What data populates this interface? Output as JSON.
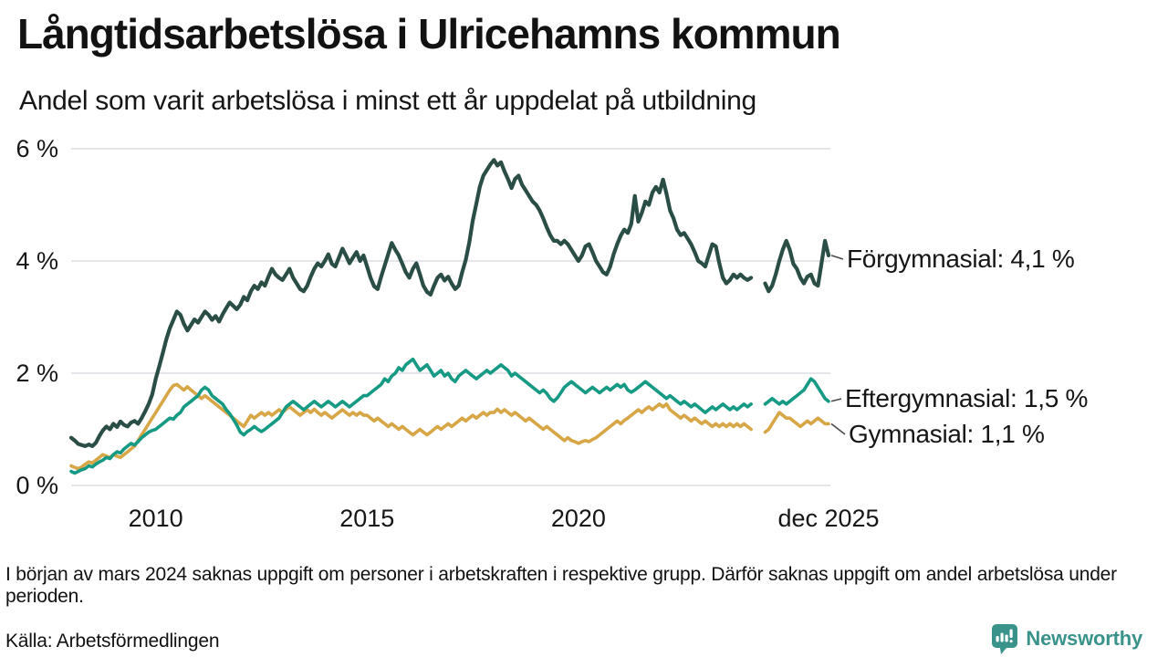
{
  "header": {
    "title": "Långtidsarbetslösa i Ulricehamns kommun",
    "subtitle": "Andel som varit arbetslösa i minst ett år uppdelat på utbildning"
  },
  "chart_data": {
    "type": "line",
    "title": "Långtidsarbetslösa i Ulricehamns kommun",
    "subtitle": "Andel som varit arbetslösa i minst ett år uppdelat på utbildning",
    "unit": "%",
    "x_unit": "month",
    "x_start": "2008-01",
    "x_end": "2025-12",
    "grid": "horizontal",
    "ylim": [
      0,
      6.3
    ],
    "y_ticks": [
      {
        "label": "0 %",
        "value": 0
      },
      {
        "label": "2 %",
        "value": 2
      },
      {
        "label": "4 %",
        "value": 4
      },
      {
        "label": "6 %",
        "value": 6
      }
    ],
    "x_ticks": [
      {
        "label": "2010",
        "month_index": 24
      },
      {
        "label": "2015",
        "month_index": 84
      },
      {
        "label": "2020",
        "month_index": 144
      },
      {
        "label": "dec 2025",
        "month_index": 215
      }
    ],
    "series": [
      {
        "name": "Förgymnasial",
        "end_label": "Förgymnasial: 4,1 %",
        "end_value": 4.1,
        "color": "#2a4e46",
        "values": [
          0.85,
          0.8,
          0.74,
          0.72,
          0.7,
          0.73,
          0.7,
          0.76,
          0.88,
          0.98,
          1.05,
          1.0,
          1.1,
          1.04,
          1.14,
          1.08,
          1.05,
          1.12,
          1.15,
          1.1,
          1.2,
          1.32,
          1.45,
          1.62,
          1.9,
          2.12,
          2.36,
          2.6,
          2.8,
          2.95,
          3.1,
          3.04,
          2.88,
          2.76,
          2.86,
          2.96,
          2.9,
          3.0,
          3.1,
          3.04,
          2.95,
          3.02,
          2.92,
          3.05,
          3.16,
          3.26,
          3.2,
          3.14,
          3.22,
          3.36,
          3.3,
          3.46,
          3.56,
          3.5,
          3.62,
          3.56,
          3.72,
          3.86,
          3.76,
          3.7,
          3.66,
          3.76,
          3.86,
          3.7,
          3.6,
          3.5,
          3.46,
          3.56,
          3.72,
          3.86,
          3.96,
          3.9,
          4.0,
          4.12,
          3.95,
          3.9,
          4.06,
          4.22,
          4.1,
          3.96,
          4.06,
          4.16,
          4.0,
          4.1,
          3.9,
          3.7,
          3.55,
          3.5,
          3.72,
          3.92,
          4.12,
          4.32,
          4.2,
          4.1,
          3.95,
          3.8,
          3.7,
          3.86,
          3.96,
          3.76,
          3.56,
          3.45,
          3.4,
          3.56,
          3.7,
          3.76,
          3.65,
          3.72,
          3.6,
          3.5,
          3.56,
          3.8,
          4.02,
          4.32,
          4.72,
          5.02,
          5.32,
          5.52,
          5.62,
          5.72,
          5.8,
          5.7,
          5.76,
          5.6,
          5.46,
          5.3,
          5.46,
          5.52,
          5.36,
          5.26,
          5.16,
          5.06,
          5.0,
          4.9,
          4.76,
          4.6,
          4.46,
          4.36,
          4.36,
          4.3,
          4.36,
          4.3,
          4.2,
          4.1,
          4.0,
          4.1,
          4.26,
          4.3,
          4.16,
          4.0,
          3.9,
          3.8,
          3.76,
          3.9,
          4.12,
          4.3,
          4.45,
          4.56,
          4.5,
          4.66,
          5.16,
          4.7,
          4.86,
          5.06,
          5.0,
          5.22,
          5.32,
          5.22,
          5.45,
          5.2,
          4.9,
          4.76,
          4.56,
          4.46,
          4.5,
          4.4,
          4.3,
          4.16,
          4.0,
          3.96,
          3.9,
          4.1,
          4.3,
          4.26,
          3.96,
          3.7,
          3.6,
          3.66,
          3.76,
          3.7,
          3.76,
          3.7,
          3.66,
          3.7,
          null,
          null,
          null,
          3.6,
          3.46,
          3.56,
          3.76,
          4.0,
          4.2,
          4.36,
          4.2,
          3.95,
          3.86,
          3.7,
          3.6,
          3.72,
          3.76,
          3.6,
          3.56,
          3.96,
          4.36,
          4.1
        ]
      },
      {
        "name": "Eftergymnasial",
        "end_label": "Eftergymnasial: 1,5 %",
        "end_value": 1.5,
        "color": "#169a84",
        "values": [
          0.25,
          0.22,
          0.25,
          0.28,
          0.3,
          0.35,
          0.33,
          0.38,
          0.42,
          0.45,
          0.5,
          0.48,
          0.55,
          0.6,
          0.58,
          0.65,
          0.7,
          0.75,
          0.72,
          0.78,
          0.85,
          0.9,
          0.95,
          0.98,
          1.0,
          1.05,
          1.1,
          1.15,
          1.2,
          1.18,
          1.25,
          1.3,
          1.4,
          1.45,
          1.5,
          1.55,
          1.6,
          1.7,
          1.75,
          1.7,
          1.6,
          1.55,
          1.5,
          1.45,
          1.35,
          1.28,
          1.18,
          1.08,
          0.95,
          0.9,
          0.96,
          1.0,
          1.05,
          1.0,
          0.96,
          1.0,
          1.05,
          1.1,
          1.15,
          1.2,
          1.3,
          1.4,
          1.45,
          1.5,
          1.45,
          1.4,
          1.35,
          1.4,
          1.45,
          1.5,
          1.45,
          1.4,
          1.45,
          1.5,
          1.45,
          1.4,
          1.45,
          1.5,
          1.45,
          1.4,
          1.45,
          1.5,
          1.55,
          1.6,
          1.6,
          1.65,
          1.7,
          1.75,
          1.8,
          1.9,
          1.85,
          1.95,
          2.0,
          2.1,
          2.05,
          2.15,
          2.2,
          2.25,
          2.15,
          2.05,
          2.1,
          2.15,
          2.05,
          1.95,
          2.0,
          2.05,
          1.95,
          2.0,
          1.9,
          1.85,
          1.95,
          2.0,
          2.05,
          2.0,
          1.95,
          1.9,
          1.95,
          2.0,
          2.05,
          2.0,
          2.05,
          2.1,
          2.15,
          2.1,
          2.05,
          1.95,
          2.0,
          1.95,
          1.9,
          1.85,
          1.8,
          1.75,
          1.7,
          1.65,
          1.7,
          1.64,
          1.55,
          1.5,
          1.56,
          1.65,
          1.75,
          1.8,
          1.85,
          1.8,
          1.75,
          1.7,
          1.65,
          1.7,
          1.75,
          1.7,
          1.65,
          1.7,
          1.75,
          1.7,
          1.75,
          1.8,
          1.75,
          1.8,
          1.7,
          1.66,
          1.7,
          1.75,
          1.8,
          1.85,
          1.8,
          1.75,
          1.7,
          1.65,
          1.6,
          1.55,
          1.6,
          1.55,
          1.5,
          1.45,
          1.5,
          1.45,
          1.4,
          1.45,
          1.4,
          1.35,
          1.3,
          1.35,
          1.4,
          1.35,
          1.4,
          1.45,
          1.4,
          1.35,
          1.4,
          1.35,
          1.4,
          1.45,
          1.4,
          1.45,
          null,
          null,
          null,
          1.45,
          1.5,
          1.55,
          1.5,
          1.45,
          1.5,
          1.45,
          1.5,
          1.55,
          1.6,
          1.65,
          1.7,
          1.8,
          1.9,
          1.85,
          1.75,
          1.65,
          1.55,
          1.5
        ]
      },
      {
        "name": "Gymnasial",
        "end_label": "Gymnasial: 1,1 %",
        "end_value": 1.1,
        "color": "#d7a647",
        "values": [
          0.35,
          0.32,
          0.3,
          0.33,
          0.38,
          0.42,
          0.4,
          0.45,
          0.5,
          0.55,
          0.52,
          0.5,
          0.55,
          0.52,
          0.5,
          0.55,
          0.6,
          0.65,
          0.7,
          0.8,
          0.9,
          1.0,
          1.1,
          1.2,
          1.3,
          1.4,
          1.5,
          1.6,
          1.7,
          1.78,
          1.8,
          1.75,
          1.7,
          1.76,
          1.7,
          1.65,
          1.6,
          1.55,
          1.6,
          1.55,
          1.5,
          1.45,
          1.4,
          1.35,
          1.3,
          1.25,
          1.2,
          1.15,
          1.1,
          1.05,
          1.15,
          1.25,
          1.2,
          1.25,
          1.3,
          1.25,
          1.3,
          1.25,
          1.3,
          1.35,
          1.3,
          1.36,
          1.4,
          1.35,
          1.3,
          1.25,
          1.3,
          1.35,
          1.3,
          1.36,
          1.3,
          1.25,
          1.3,
          1.25,
          1.2,
          1.25,
          1.3,
          1.35,
          1.3,
          1.25,
          1.3,
          1.25,
          1.3,
          1.25,
          1.25,
          1.2,
          1.15,
          1.2,
          1.15,
          1.1,
          1.05,
          1.1,
          1.05,
          1.0,
          1.05,
          1.0,
          0.95,
          0.9,
          0.95,
          1.0,
          0.95,
          0.9,
          0.95,
          1.0,
          1.05,
          1.0,
          1.05,
          1.1,
          1.05,
          1.1,
          1.15,
          1.2,
          1.15,
          1.2,
          1.25,
          1.2,
          1.25,
          1.3,
          1.25,
          1.3,
          1.3,
          1.36,
          1.3,
          1.35,
          1.3,
          1.25,
          1.3,
          1.25,
          1.2,
          1.15,
          1.2,
          1.15,
          1.1,
          1.05,
          1.0,
          1.05,
          1.0,
          0.95,
          0.9,
          0.85,
          0.8,
          0.85,
          0.8,
          0.78,
          0.75,
          0.78,
          0.8,
          0.78,
          0.82,
          0.85,
          0.9,
          0.95,
          1.0,
          1.05,
          1.1,
          1.15,
          1.1,
          1.16,
          1.2,
          1.25,
          1.3,
          1.35,
          1.3,
          1.36,
          1.4,
          1.35,
          1.4,
          1.45,
          1.4,
          1.45,
          1.35,
          1.3,
          1.25,
          1.2,
          1.25,
          1.2,
          1.15,
          1.2,
          1.15,
          1.1,
          1.15,
          1.1,
          1.05,
          1.1,
          1.05,
          1.1,
          1.05,
          1.1,
          1.05,
          1.1,
          1.05,
          1.1,
          1.05,
          1.0,
          null,
          null,
          null,
          0.95,
          1.0,
          1.1,
          1.2,
          1.3,
          1.25,
          1.2,
          1.2,
          1.15,
          1.1,
          1.05,
          1.1,
          1.15,
          1.1,
          1.15,
          1.2,
          1.15,
          1.1,
          1.1
        ]
      }
    ]
  },
  "footer": {
    "footnote": "I början av mars 2024 saknas uppgift om personer i arbetskraften i respektive grupp. Därför saknas uppgift om andel arbetslösa under perioden.",
    "source": "Källa: Arbetsförmedlingen",
    "brand": "Newsworthy",
    "brand_color": "#3a938a"
  }
}
